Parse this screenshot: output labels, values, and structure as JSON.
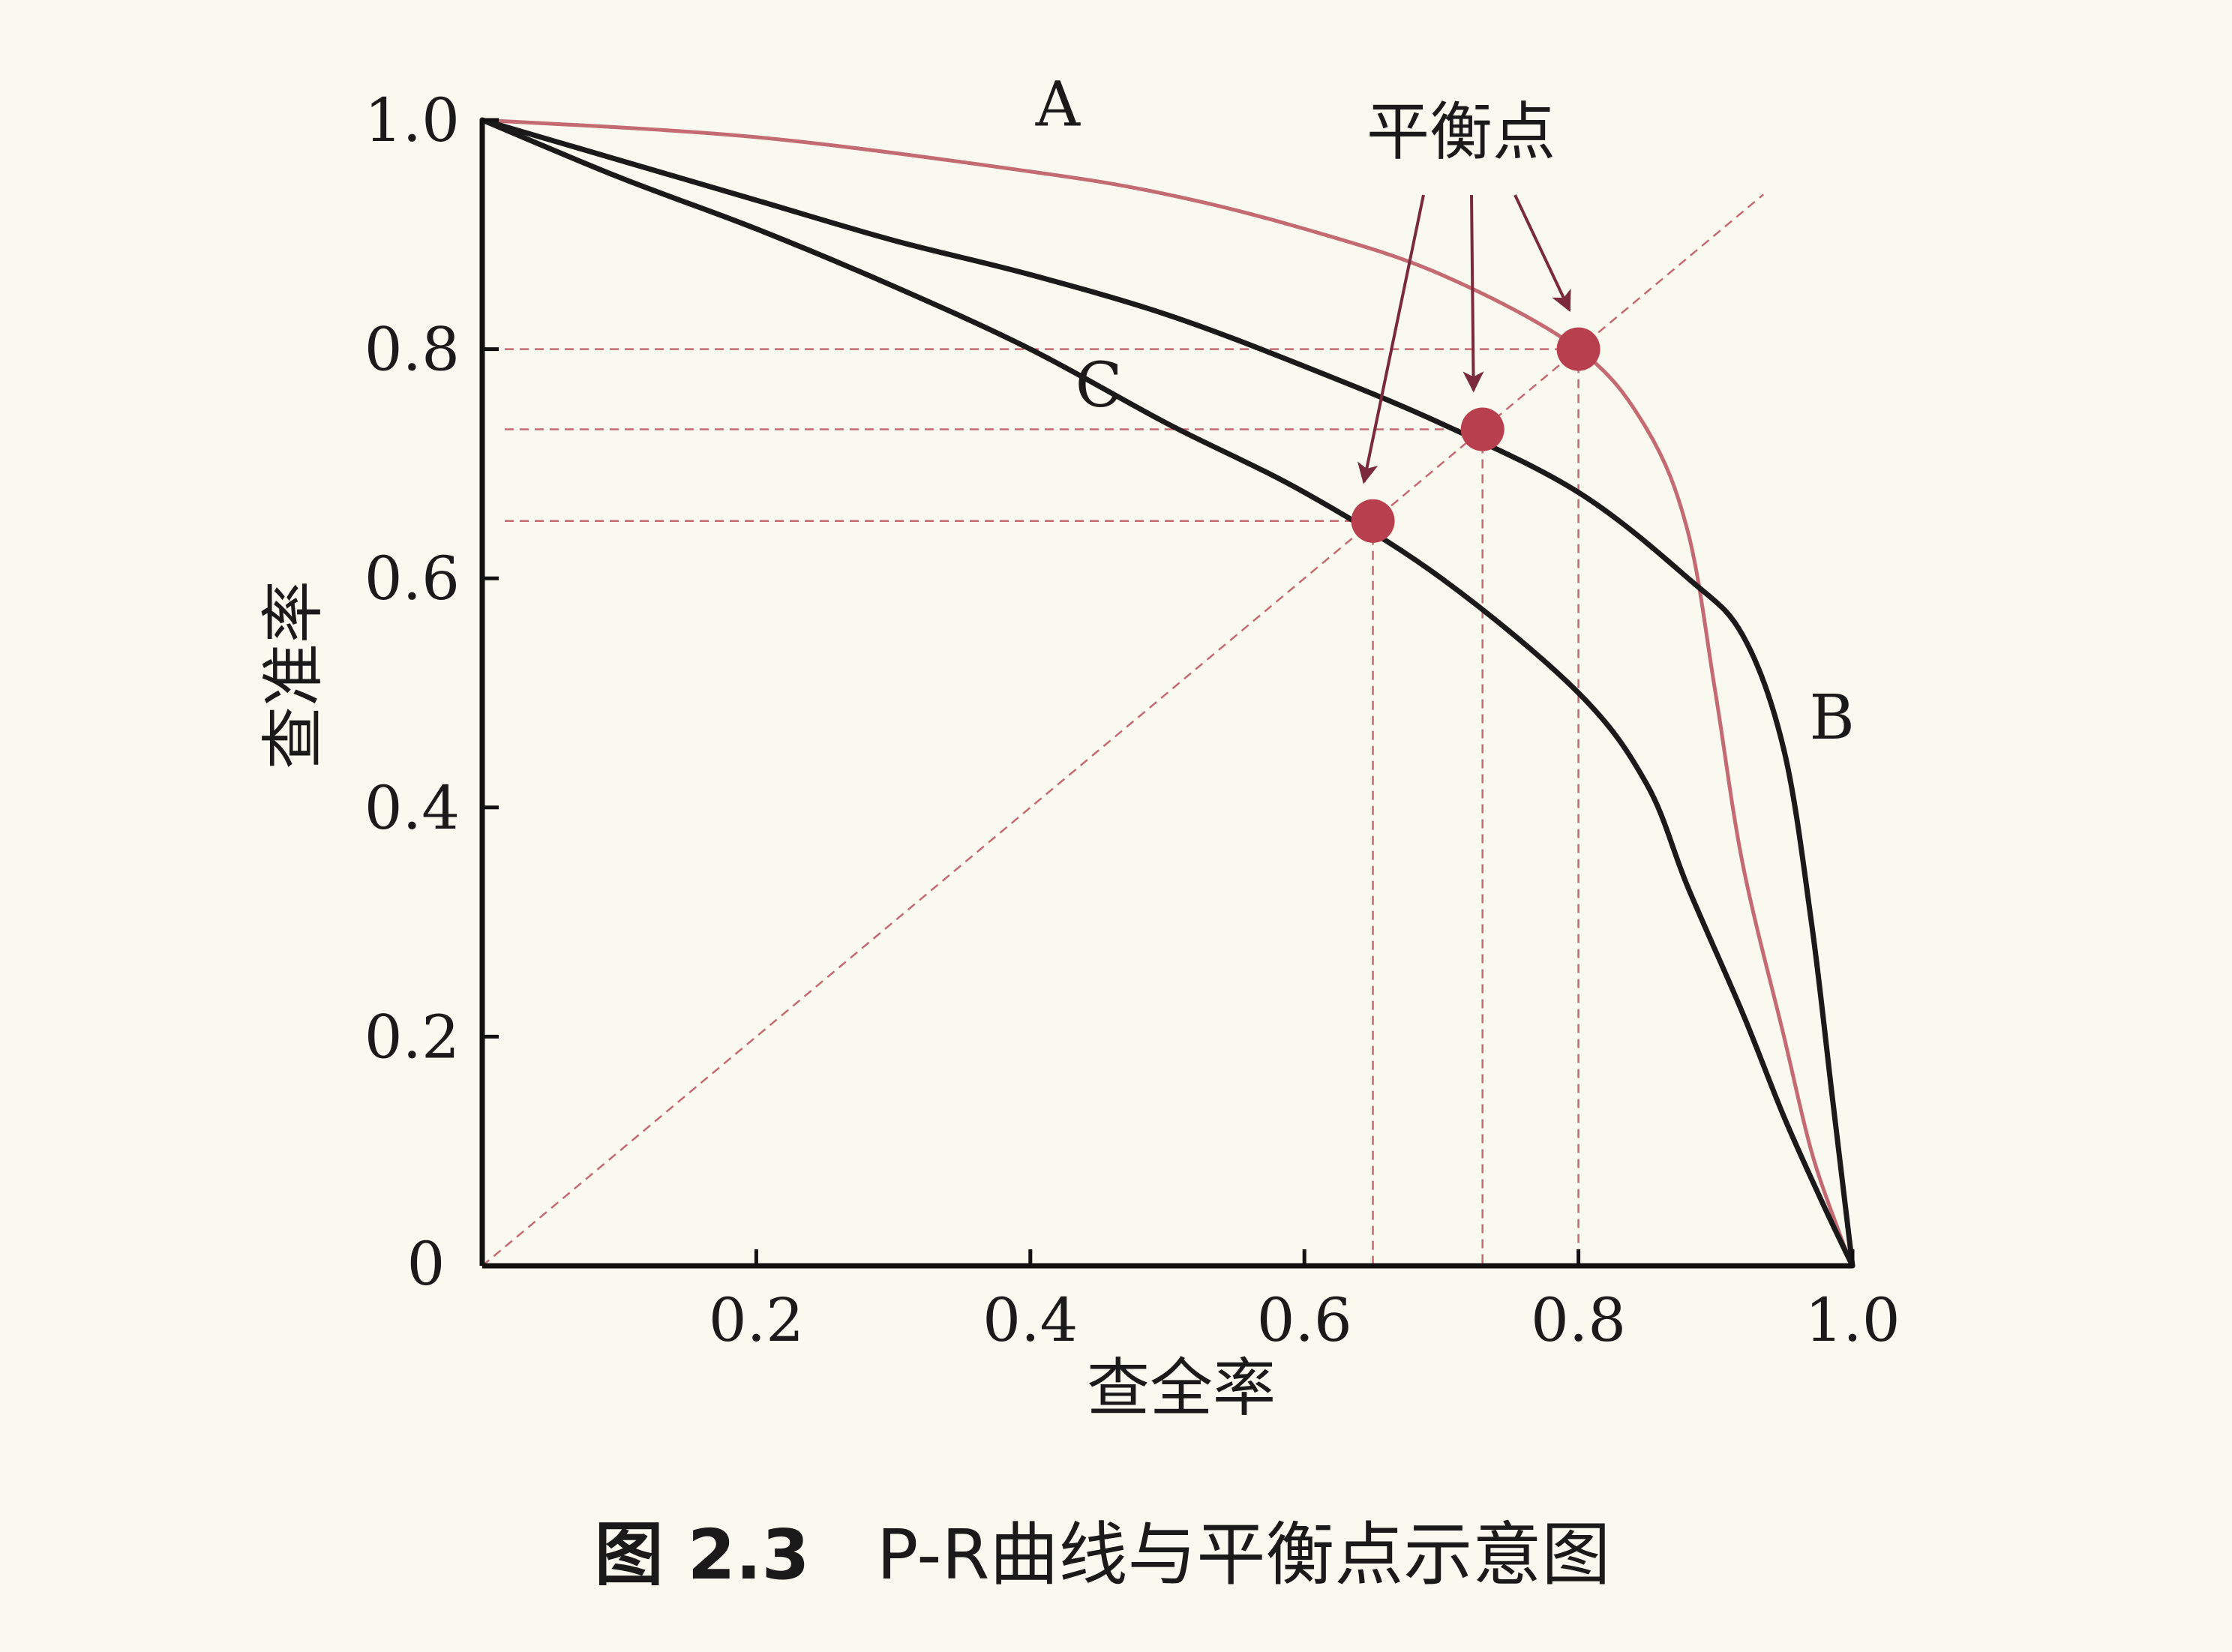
{
  "chart_data": {
    "type": "line",
    "title": "",
    "xlabel": "查全率",
    "ylabel": "查准率",
    "xlim": [
      0,
      1
    ],
    "ylim": [
      0,
      1
    ],
    "x_ticks": [
      {
        "value": 0,
        "label": "0"
      },
      {
        "value": 0.2,
        "label": "0.2"
      },
      {
        "value": 0.4,
        "label": "0.4"
      },
      {
        "value": 0.6,
        "label": "0.6"
      },
      {
        "value": 0.8,
        "label": "0.8"
      },
      {
        "value": 1.0,
        "label": "1.0"
      }
    ],
    "y_ticks": [
      {
        "value": 0.2,
        "label": "0.2"
      },
      {
        "value": 0.4,
        "label": "0.4"
      },
      {
        "value": 0.6,
        "label": "0.6"
      },
      {
        "value": 0.8,
        "label": "0.8"
      },
      {
        "value": 1.0,
        "label": "1.0"
      }
    ],
    "grid": false,
    "series": [
      {
        "name": "A",
        "color": "#c46a72",
        "points": [
          [
            0,
            1.0
          ],
          [
            0.2,
            0.985
          ],
          [
            0.4,
            0.955
          ],
          [
            0.5,
            0.935
          ],
          [
            0.6,
            0.905
          ],
          [
            0.7,
            0.865
          ],
          [
            0.8,
            0.8
          ],
          [
            0.85,
            0.73
          ],
          [
            0.88,
            0.64
          ],
          [
            0.9,
            0.5
          ],
          [
            0.92,
            0.35
          ],
          [
            0.95,
            0.2
          ],
          [
            0.97,
            0.1
          ],
          [
            0.99,
            0.03
          ],
          [
            1.0,
            0
          ]
        ]
      },
      {
        "name": "B",
        "color": "#1a1a1a",
        "points": [
          [
            0,
            1.0
          ],
          [
            0.1,
            0.965
          ],
          [
            0.2,
            0.93
          ],
          [
            0.3,
            0.895
          ],
          [
            0.4,
            0.865
          ],
          [
            0.5,
            0.83
          ],
          [
            0.6,
            0.785
          ],
          [
            0.7,
            0.735
          ],
          [
            0.8,
            0.675
          ],
          [
            0.88,
            0.6
          ],
          [
            0.92,
            0.55
          ],
          [
            0.95,
            0.45
          ],
          [
            0.97,
            0.3
          ],
          [
            0.985,
            0.15
          ],
          [
            0.995,
            0.05
          ],
          [
            1.0,
            0
          ]
        ]
      },
      {
        "name": "C",
        "color": "#1a1a1a",
        "points": [
          [
            0,
            1.0
          ],
          [
            0.1,
            0.95
          ],
          [
            0.2,
            0.905
          ],
          [
            0.3,
            0.855
          ],
          [
            0.4,
            0.8
          ],
          [
            0.5,
            0.735
          ],
          [
            0.6,
            0.675
          ],
          [
            0.7,
            0.6
          ],
          [
            0.8,
            0.5
          ],
          [
            0.85,
            0.42
          ],
          [
            0.88,
            0.33
          ],
          [
            0.92,
            0.22
          ],
          [
            0.95,
            0.13
          ],
          [
            0.98,
            0.05
          ],
          [
            1.0,
            0
          ]
        ]
      }
    ],
    "reference_line": {
      "points": [
        [
          0,
          0
        ],
        [
          0.935,
          0.935
        ]
      ],
      "color": "#c46a72",
      "style": "dashed"
    },
    "break_even_points": [
      {
        "x": 0.65,
        "y": 0.65,
        "label": "C"
      },
      {
        "x": 0.73,
        "y": 0.73,
        "label": "B"
      },
      {
        "x": 0.8,
        "y": 0.8,
        "label": "A"
      }
    ],
    "curve_labels": [
      {
        "series": "A",
        "text": "A",
        "x": 0.42,
        "y": 0.995
      },
      {
        "series": "B",
        "text": "B",
        "x": 0.985,
        "y": 0.46
      },
      {
        "series": "C",
        "text": "C",
        "x": 0.45,
        "y": 0.75
      }
    ],
    "annotation": {
      "text": "平衡点",
      "arrow_targets": [
        "C",
        "B",
        "A"
      ]
    },
    "caption": {
      "figure_number": "图 2.3",
      "text": "P-R曲线与平衡点示意图"
    },
    "colors": {
      "background": "#faf9ef",
      "axis": "#111111",
      "accent": "#c46a72",
      "point": "#b8404e",
      "arrow": "#7a2a3a"
    }
  }
}
